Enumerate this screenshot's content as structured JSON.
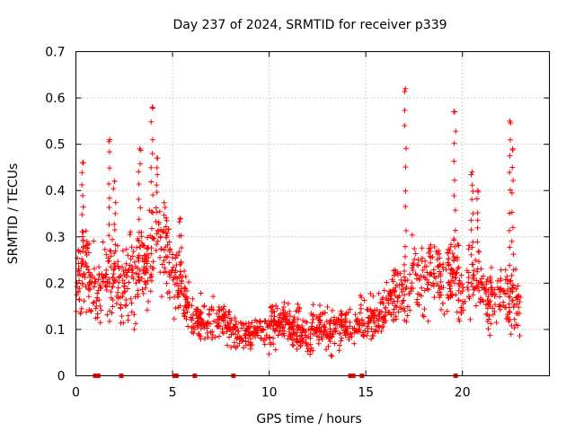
{
  "colors": {
    "series": "#ff0000",
    "frame": "#000000",
    "grid": "#a0a0a0",
    "background": "#ffffff"
  },
  "chart_data": {
    "type": "scatter",
    "title": "Day 237 of 2024, SRMTID for receiver p339",
    "xlabel": "GPS time / hours",
    "ylabel": "SRMTID / TECUs",
    "xlim": [
      0,
      24.5
    ],
    "ylim": [
      0,
      0.7
    ],
    "xticks": [
      0,
      5,
      10,
      15,
      20
    ],
    "xtick_labels": [
      "0",
      "5",
      "10",
      "15",
      "20"
    ],
    "yticks": [
      0,
      0.1,
      0.2,
      0.3,
      0.4,
      0.5,
      0.6,
      0.7
    ],
    "ytick_labels": [
      "0",
      "0.1",
      "0.2",
      "0.3",
      "0.4",
      "0.5",
      "0.6",
      "0.7"
    ],
    "grid": true,
    "marker": "plus",
    "series": [
      {
        "name": "SRMTID",
        "profile": {
          "hours": [
            0.0,
            0.5,
            1.0,
            1.5,
            2.0,
            2.5,
            3.0,
            3.5,
            4.0,
            4.5,
            5.0,
            5.5,
            6.0,
            6.5,
            7.0,
            7.5,
            8.0,
            8.5,
            9.0,
            9.5,
            10.0,
            10.5,
            11.0,
            11.5,
            12.0,
            12.5,
            13.0,
            13.5,
            14.0,
            14.5,
            15.0,
            15.5,
            16.0,
            16.5,
            17.0,
            17.5,
            18.0,
            18.5,
            19.0,
            19.5,
            20.0,
            20.5,
            21.0,
            21.5,
            22.0,
            22.5,
            23.0
          ],
          "center": [
            0.2,
            0.23,
            0.18,
            0.22,
            0.2,
            0.19,
            0.22,
            0.24,
            0.26,
            0.28,
            0.23,
            0.18,
            0.13,
            0.12,
            0.13,
            0.12,
            0.1,
            0.09,
            0.09,
            0.1,
            0.1,
            0.12,
            0.11,
            0.1,
            0.09,
            0.11,
            0.1,
            0.1,
            0.11,
            0.12,
            0.12,
            0.12,
            0.14,
            0.17,
            0.19,
            0.21,
            0.2,
            0.23,
            0.2,
            0.22,
            0.19,
            0.22,
            0.17,
            0.16,
            0.17,
            0.16,
            0.15
          ],
          "spread": [
            0.07,
            0.08,
            0.07,
            0.08,
            0.08,
            0.08,
            0.09,
            0.09,
            0.1,
            0.09,
            0.08,
            0.06,
            0.04,
            0.04,
            0.04,
            0.04,
            0.03,
            0.03,
            0.03,
            0.03,
            0.04,
            0.04,
            0.04,
            0.04,
            0.04,
            0.04,
            0.04,
            0.04,
            0.04,
            0.04,
            0.04,
            0.04,
            0.05,
            0.06,
            0.07,
            0.07,
            0.07,
            0.08,
            0.08,
            0.08,
            0.07,
            0.08,
            0.06,
            0.06,
            0.06,
            0.06,
            0.06
          ]
        },
        "peaks": [
          {
            "hour": 0.35,
            "value": 0.46
          },
          {
            "hour": 1.75,
            "value": 0.51
          },
          {
            "hour": 2.0,
            "value": 0.42
          },
          {
            "hour": 3.3,
            "value": 0.49
          },
          {
            "hour": 3.95,
            "value": 0.58
          },
          {
            "hour": 4.2,
            "value": 0.47
          },
          {
            "hour": 5.4,
            "value": 0.34
          },
          {
            "hour": 17.05,
            "value": 0.62
          },
          {
            "hour": 19.6,
            "value": 0.57
          },
          {
            "hour": 20.5,
            "value": 0.44
          },
          {
            "hour": 20.8,
            "value": 0.4
          },
          {
            "hour": 22.45,
            "value": 0.55
          },
          {
            "hour": 22.6,
            "value": 0.49
          }
        ],
        "zero_markers": [
          1.0,
          1.15,
          2.35,
          5.1,
          5.2,
          6.15,
          8.15,
          14.2,
          14.35,
          14.8,
          19.65
        ]
      }
    ]
  }
}
